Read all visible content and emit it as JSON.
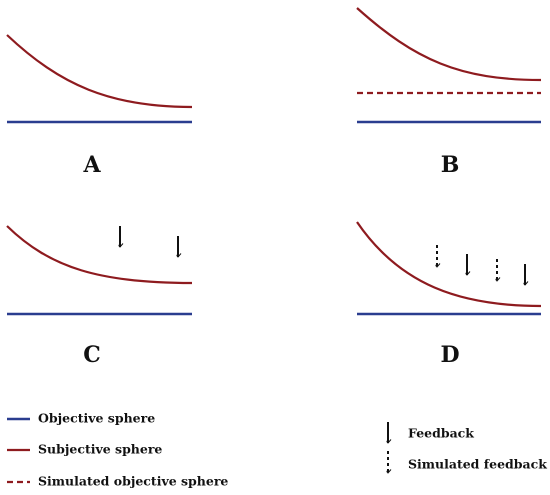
{
  "panels": [
    {
      "label": "A"
    },
    {
      "label": "B"
    },
    {
      "label": "C"
    },
    {
      "label": "D"
    }
  ],
  "legend": [
    {
      "label": "Objective sphere"
    },
    {
      "label": "Subjective sphere"
    },
    {
      "label": "Simulated objective sphere"
    }
  ],
  "arrow_legend": [
    {
      "label": "Feedback"
    },
    {
      "label": "Simulated feedback"
    }
  ]
}
